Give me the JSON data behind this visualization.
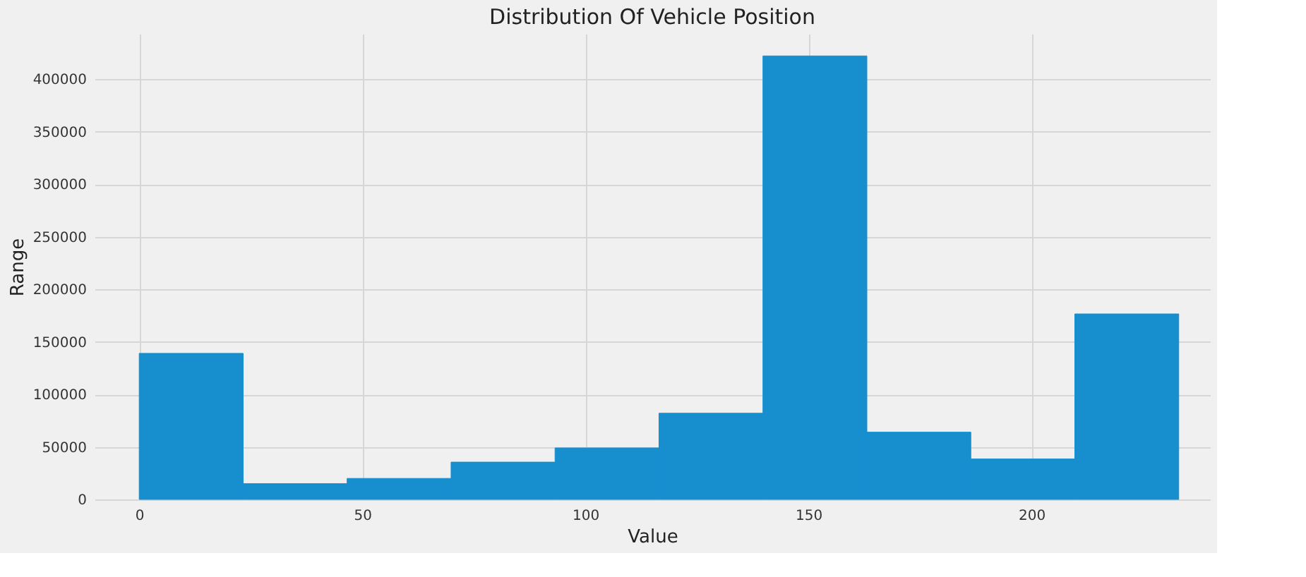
{
  "chart_data": {
    "type": "histogram",
    "title": "Distribution Of Vehicle Position",
    "xlabel": "Value",
    "ylabel": "Range",
    "bins": [
      0,
      23.3,
      46.6,
      69.9,
      93.2,
      116.5,
      139.8,
      163.1,
      186.4,
      209.7,
      233
    ],
    "values": [
      139000,
      15000,
      20000,
      35500,
      49000,
      82000,
      422000,
      64000,
      38500,
      176500
    ],
    "color": "#178fcf",
    "xlim": [
      -10,
      240
    ],
    "xticks": [
      0,
      50,
      100,
      150,
      200
    ],
    "ylim": [
      0,
      443000
    ],
    "yticks": [
      0,
      50000,
      100000,
      150000,
      200000,
      250000,
      300000,
      350000,
      400000
    ],
    "grid": true
  }
}
